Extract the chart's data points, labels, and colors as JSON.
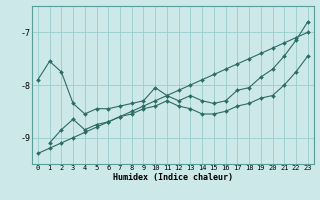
{
  "xlabel": "Humidex (Indice chaleur)",
  "background_color": "#cce8e8",
  "grid_color": "#99cccc",
  "line_color": "#2d6b65",
  "x_ticks": [
    0,
    1,
    2,
    3,
    4,
    5,
    6,
    7,
    8,
    9,
    10,
    11,
    12,
    13,
    14,
    15,
    16,
    17,
    18,
    19,
    20,
    21,
    22,
    23
  ],
  "y_ticks": [
    -7,
    -8,
    -9
  ],
  "ylim": [
    -9.5,
    -6.5
  ],
  "xlim": [
    -0.5,
    23.5
  ],
  "series": {
    "line1_upper": {
      "x": [
        0,
        1,
        2,
        3,
        4,
        5,
        6,
        7,
        8,
        9,
        10,
        11,
        12,
        13,
        14,
        15,
        16,
        17,
        18,
        19,
        20,
        21,
        22,
        23
      ],
      "y": [
        -7.9,
        -7.55,
        -7.75,
        -8.35,
        -8.55,
        -8.45,
        -8.45,
        -8.4,
        -8.35,
        -8.3,
        -8.05,
        -8.2,
        -8.3,
        -8.2,
        -8.3,
        -8.35,
        -8.3,
        -8.1,
        -8.05,
        -7.85,
        -7.7,
        -7.45,
        -7.15,
        -6.8
      ]
    },
    "line2_diagonal": {
      "x": [
        0,
        1,
        2,
        3,
        4,
        5,
        6,
        7,
        8,
        9,
        10,
        11,
        12,
        13,
        14,
        15,
        16,
        17,
        18,
        19,
        20,
        21,
        22,
        23
      ],
      "y": [
        -9.3,
        -9.2,
        -9.1,
        -9.0,
        -8.9,
        -8.8,
        -8.7,
        -8.6,
        -8.5,
        -8.4,
        -8.3,
        -8.2,
        -8.1,
        -8.0,
        -7.9,
        -7.8,
        -7.7,
        -7.6,
        -7.5,
        -7.4,
        -7.3,
        -7.2,
        -7.1,
        -7.0
      ]
    },
    "line3_wavy": {
      "x": [
        1,
        2,
        3,
        4,
        5,
        6,
        7,
        8,
        9,
        10,
        11,
        12,
        13,
        14,
        15,
        16,
        17,
        18,
        19,
        20,
        21,
        22,
        23
      ],
      "y": [
        -9.1,
        -8.85,
        -8.65,
        -8.85,
        -8.75,
        -8.7,
        -8.6,
        -8.55,
        -8.45,
        -8.4,
        -8.3,
        -8.4,
        -8.45,
        -8.55,
        -8.55,
        -8.5,
        -8.4,
        -8.35,
        -8.25,
        -8.2,
        -8.0,
        -7.75,
        -7.45
      ]
    }
  },
  "tick_fontsize": 5,
  "xlabel_fontsize": 6,
  "ylabel_fontsize": 6
}
